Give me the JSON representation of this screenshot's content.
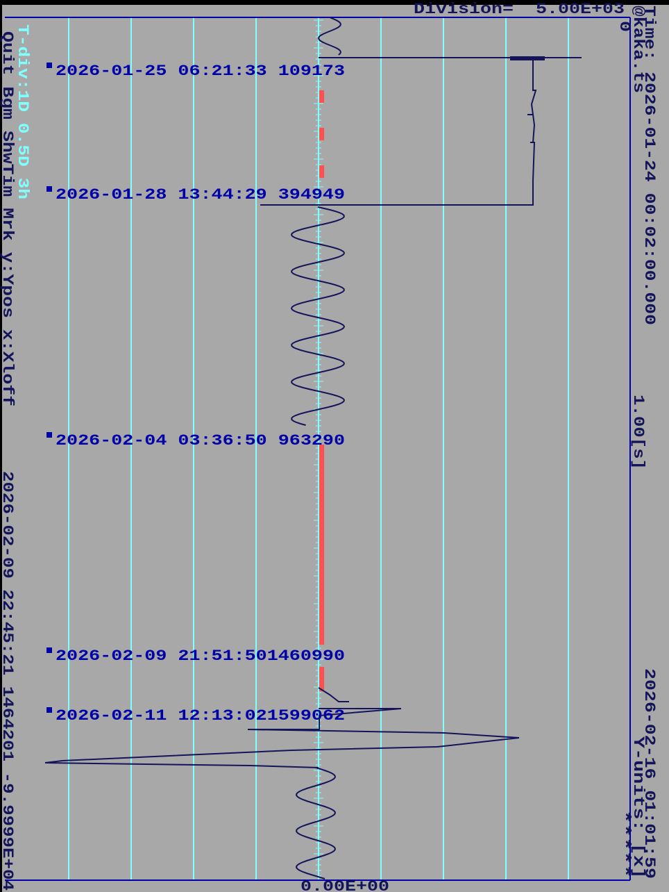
{
  "header": {
    "division": "Division=  5.00E+03"
  },
  "right_panel": {
    "file": "@kaka.ts",
    "start_time": "Time: 2026-01-24 00:02:00.000",
    "origin": "0",
    "time_scale": "1.00[s]",
    "end_time": "2026-02-16 01:01:59",
    "y_units": "Y-units: [x]",
    "status": "*****"
  },
  "left_panel": {
    "time_division": "T-div:1D 0.5D 3h",
    "menu": "Quit Bgm ShwTim Mrk y:Ypos x:Xloff",
    "cursor": "2026-02-09 22:45:21 1464201 -9.9999E+04"
  },
  "markers": [
    "2026-01-25 06:21:33 109173",
    "2026-01-28 13:44:29 394949",
    "2026-02-04 03:36:50 963290",
    "2026-02-09 21:51:501460990",
    "2026-02-11 12:13:021599062"
  ],
  "footer": {
    "y_origin": "0.00E+00"
  }
}
